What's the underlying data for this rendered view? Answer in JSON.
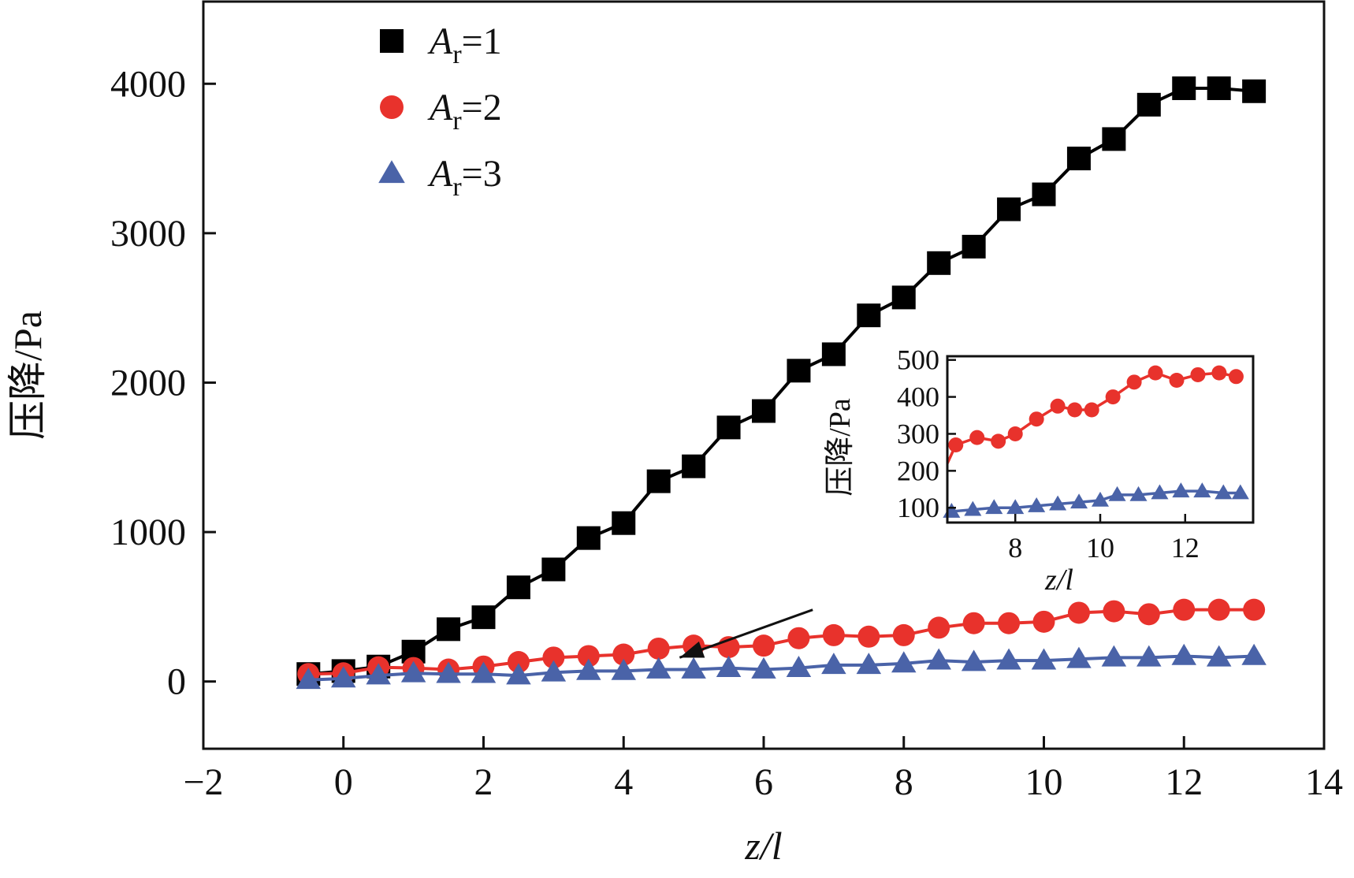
{
  "chart_data": [
    {
      "type": "line",
      "xlabel": "z/l",
      "ylabel": "压降/Pa",
      "xlim": [
        -2,
        14
      ],
      "ylim": [
        -450,
        4550
      ],
      "xticks": [
        "−2",
        "0",
        "2",
        "4",
        "6",
        "8",
        "10",
        "12",
        "14"
      ],
      "xtick_values": [
        -2,
        0,
        2,
        4,
        6,
        8,
        10,
        12,
        14
      ],
      "yticks": [
        "0",
        "1000",
        "2000",
        "3000",
        "4000"
      ],
      "ytick_values": [
        0,
        1000,
        2000,
        3000,
        4000
      ],
      "legend_position": "top-left",
      "grid": false,
      "series": [
        {
          "name": "A_r=1",
          "legend": {
            "main": "A",
            "sub": "r",
            "rest": "=1"
          },
          "marker": "square",
          "color": "#000000",
          "line_color": "#000000",
          "x": [
            -0.5,
            0,
            0.5,
            1,
            1.5,
            2,
            2.5,
            3,
            3.5,
            4,
            4.5,
            5,
            5.5,
            6,
            6.5,
            7,
            7.5,
            8,
            8.5,
            9,
            9.5,
            10,
            10.5,
            11,
            11.5,
            12,
            12.5,
            13
          ],
          "y": [
            50,
            70,
            100,
            200,
            350,
            430,
            630,
            750,
            960,
            1060,
            1340,
            1440,
            1700,
            1810,
            2080,
            2190,
            2450,
            2570,
            2800,
            2910,
            3160,
            3260,
            3500,
            3630,
            3860,
            3970,
            3970,
            3950
          ]
        },
        {
          "name": "A_r=2",
          "legend": {
            "main": "A",
            "sub": "r",
            "rest": "=2"
          },
          "marker": "circle",
          "color": "#e8322c",
          "line_color": "#e8322c",
          "x": [
            -0.5,
            0,
            0.5,
            1,
            1.5,
            2,
            2.5,
            3,
            3.5,
            4,
            4.5,
            5,
            5.5,
            6,
            6.5,
            7,
            7.5,
            8,
            8.5,
            9,
            9.5,
            10,
            10.5,
            11,
            11.5,
            12,
            12.5,
            13
          ],
          "y": [
            50,
            55,
            95,
            90,
            80,
            100,
            130,
            160,
            170,
            180,
            220,
            240,
            230,
            240,
            290,
            310,
            300,
            310,
            360,
            390,
            390,
            400,
            460,
            470,
            450,
            480,
            480,
            480
          ]
        },
        {
          "name": "A_r=3",
          "legend": {
            "main": "A",
            "sub": "r",
            "rest": "=3"
          },
          "marker": "triangle",
          "color": "#4a63a8",
          "line_color": "#4a63a8",
          "x": [
            -0.5,
            0,
            0.5,
            1,
            1.5,
            2,
            2.5,
            3,
            3.5,
            4,
            4.5,
            5,
            5.5,
            6,
            6.5,
            7,
            7.5,
            8,
            8.5,
            9,
            9.5,
            10,
            10.5,
            11,
            11.5,
            12,
            12.5,
            13
          ],
          "y": [
            10,
            20,
            40,
            55,
            50,
            50,
            40,
            60,
            70,
            70,
            80,
            80,
            90,
            80,
            90,
            110,
            110,
            120,
            140,
            130,
            140,
            140,
            150,
            160,
            160,
            170,
            160,
            170
          ]
        }
      ],
      "annotation_arrow": {
        "from": [
          6.7,
          480
        ],
        "to": [
          4.8,
          160
        ],
        "note": "arrow from inset to curves"
      }
    },
    {
      "type": "line",
      "role": "inset",
      "xlabel": "z/l",
      "ylabel": "压降/Pa",
      "xlim": [
        6.4,
        13.6
      ],
      "ylim": [
        60,
        510
      ],
      "xticks": [
        "8",
        "10",
        "12"
      ],
      "xtick_values": [
        8,
        10,
        12
      ],
      "yticks": [
        "100",
        "200",
        "300",
        "400",
        "500"
      ],
      "ytick_values": [
        100,
        200,
        300,
        400,
        500
      ],
      "grid": false,
      "series": [
        {
          "name": "A_r=2",
          "marker": "circle",
          "color": "#e8322c",
          "line_color": "#e8322c",
          "curve_start": [
            6.4,
            220
          ],
          "x": [
            6.6,
            7.1,
            7.6,
            8.0,
            8.5,
            9.0,
            9.4,
            9.8,
            10.3,
            10.8,
            11.3,
            11.8,
            12.3,
            12.8,
            13.2
          ],
          "y": [
            270,
            290,
            280,
            300,
            340,
            375,
            365,
            365,
            400,
            440,
            465,
            445,
            460,
            465,
            455
          ]
        },
        {
          "name": "A_r=3",
          "marker": "triangle",
          "color": "#4a63a8",
          "line_color": "#4a63a8",
          "curve_start": [
            6.4,
            85
          ],
          "x": [
            6.5,
            7.0,
            7.5,
            8.0,
            8.5,
            9.0,
            9.5,
            10.0,
            10.4,
            10.9,
            11.4,
            11.9,
            12.4,
            12.9,
            13.3
          ],
          "y": [
            90,
            95,
            100,
            100,
            105,
            110,
            115,
            120,
            135,
            135,
            140,
            145,
            145,
            140,
            140
          ]
        }
      ]
    }
  ]
}
